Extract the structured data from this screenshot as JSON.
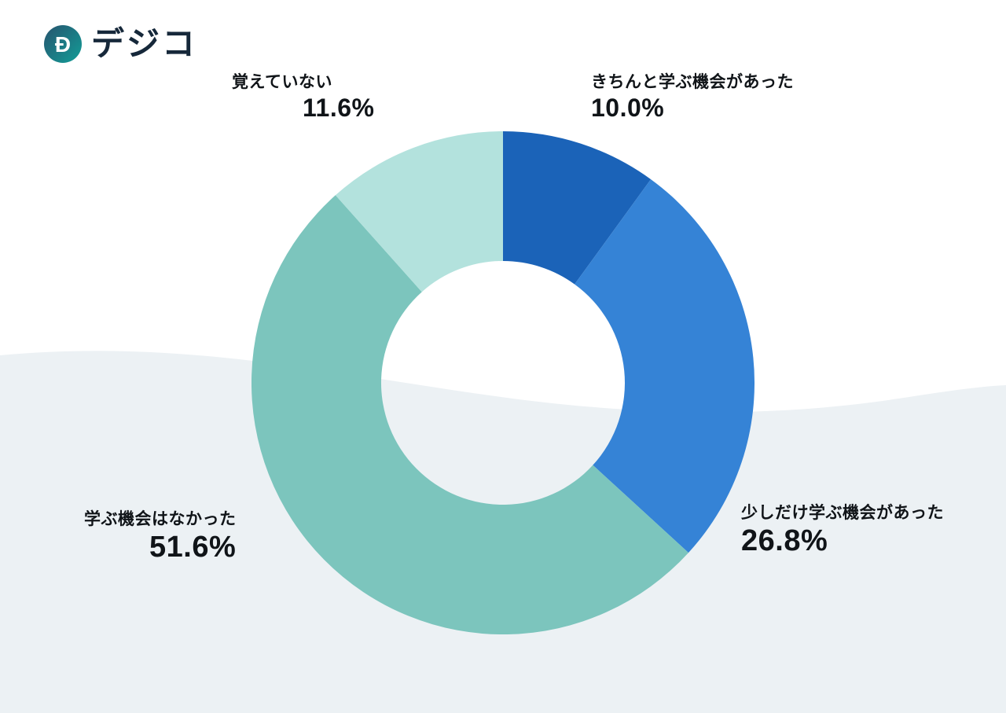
{
  "logo": {
    "brand": "デジコ",
    "mark": "Ð"
  },
  "background": {
    "wave_color": "#ecf1f4"
  },
  "chart_data": {
    "type": "pie",
    "donut": true,
    "title": "",
    "start_angle_deg": 0,
    "direction": "clockwise",
    "inner_radius_ratio": 0.485,
    "segments": [
      {
        "label": "きちんと学ぶ機会があった",
        "value": 10.0,
        "display": "10.0%",
        "color": "#1b63b8"
      },
      {
        "label": "少しだけ学ぶ機会があった",
        "value": 26.8,
        "display": "26.8%",
        "color": "#3583d6"
      },
      {
        "label": "学ぶ機会はなかった",
        "value": 51.6,
        "display": "51.6%",
        "color": "#7cc5bd"
      },
      {
        "label": "覚えていない",
        "value": 11.6,
        "display": "11.6%",
        "color": "#b3e2dd"
      }
    ]
  }
}
